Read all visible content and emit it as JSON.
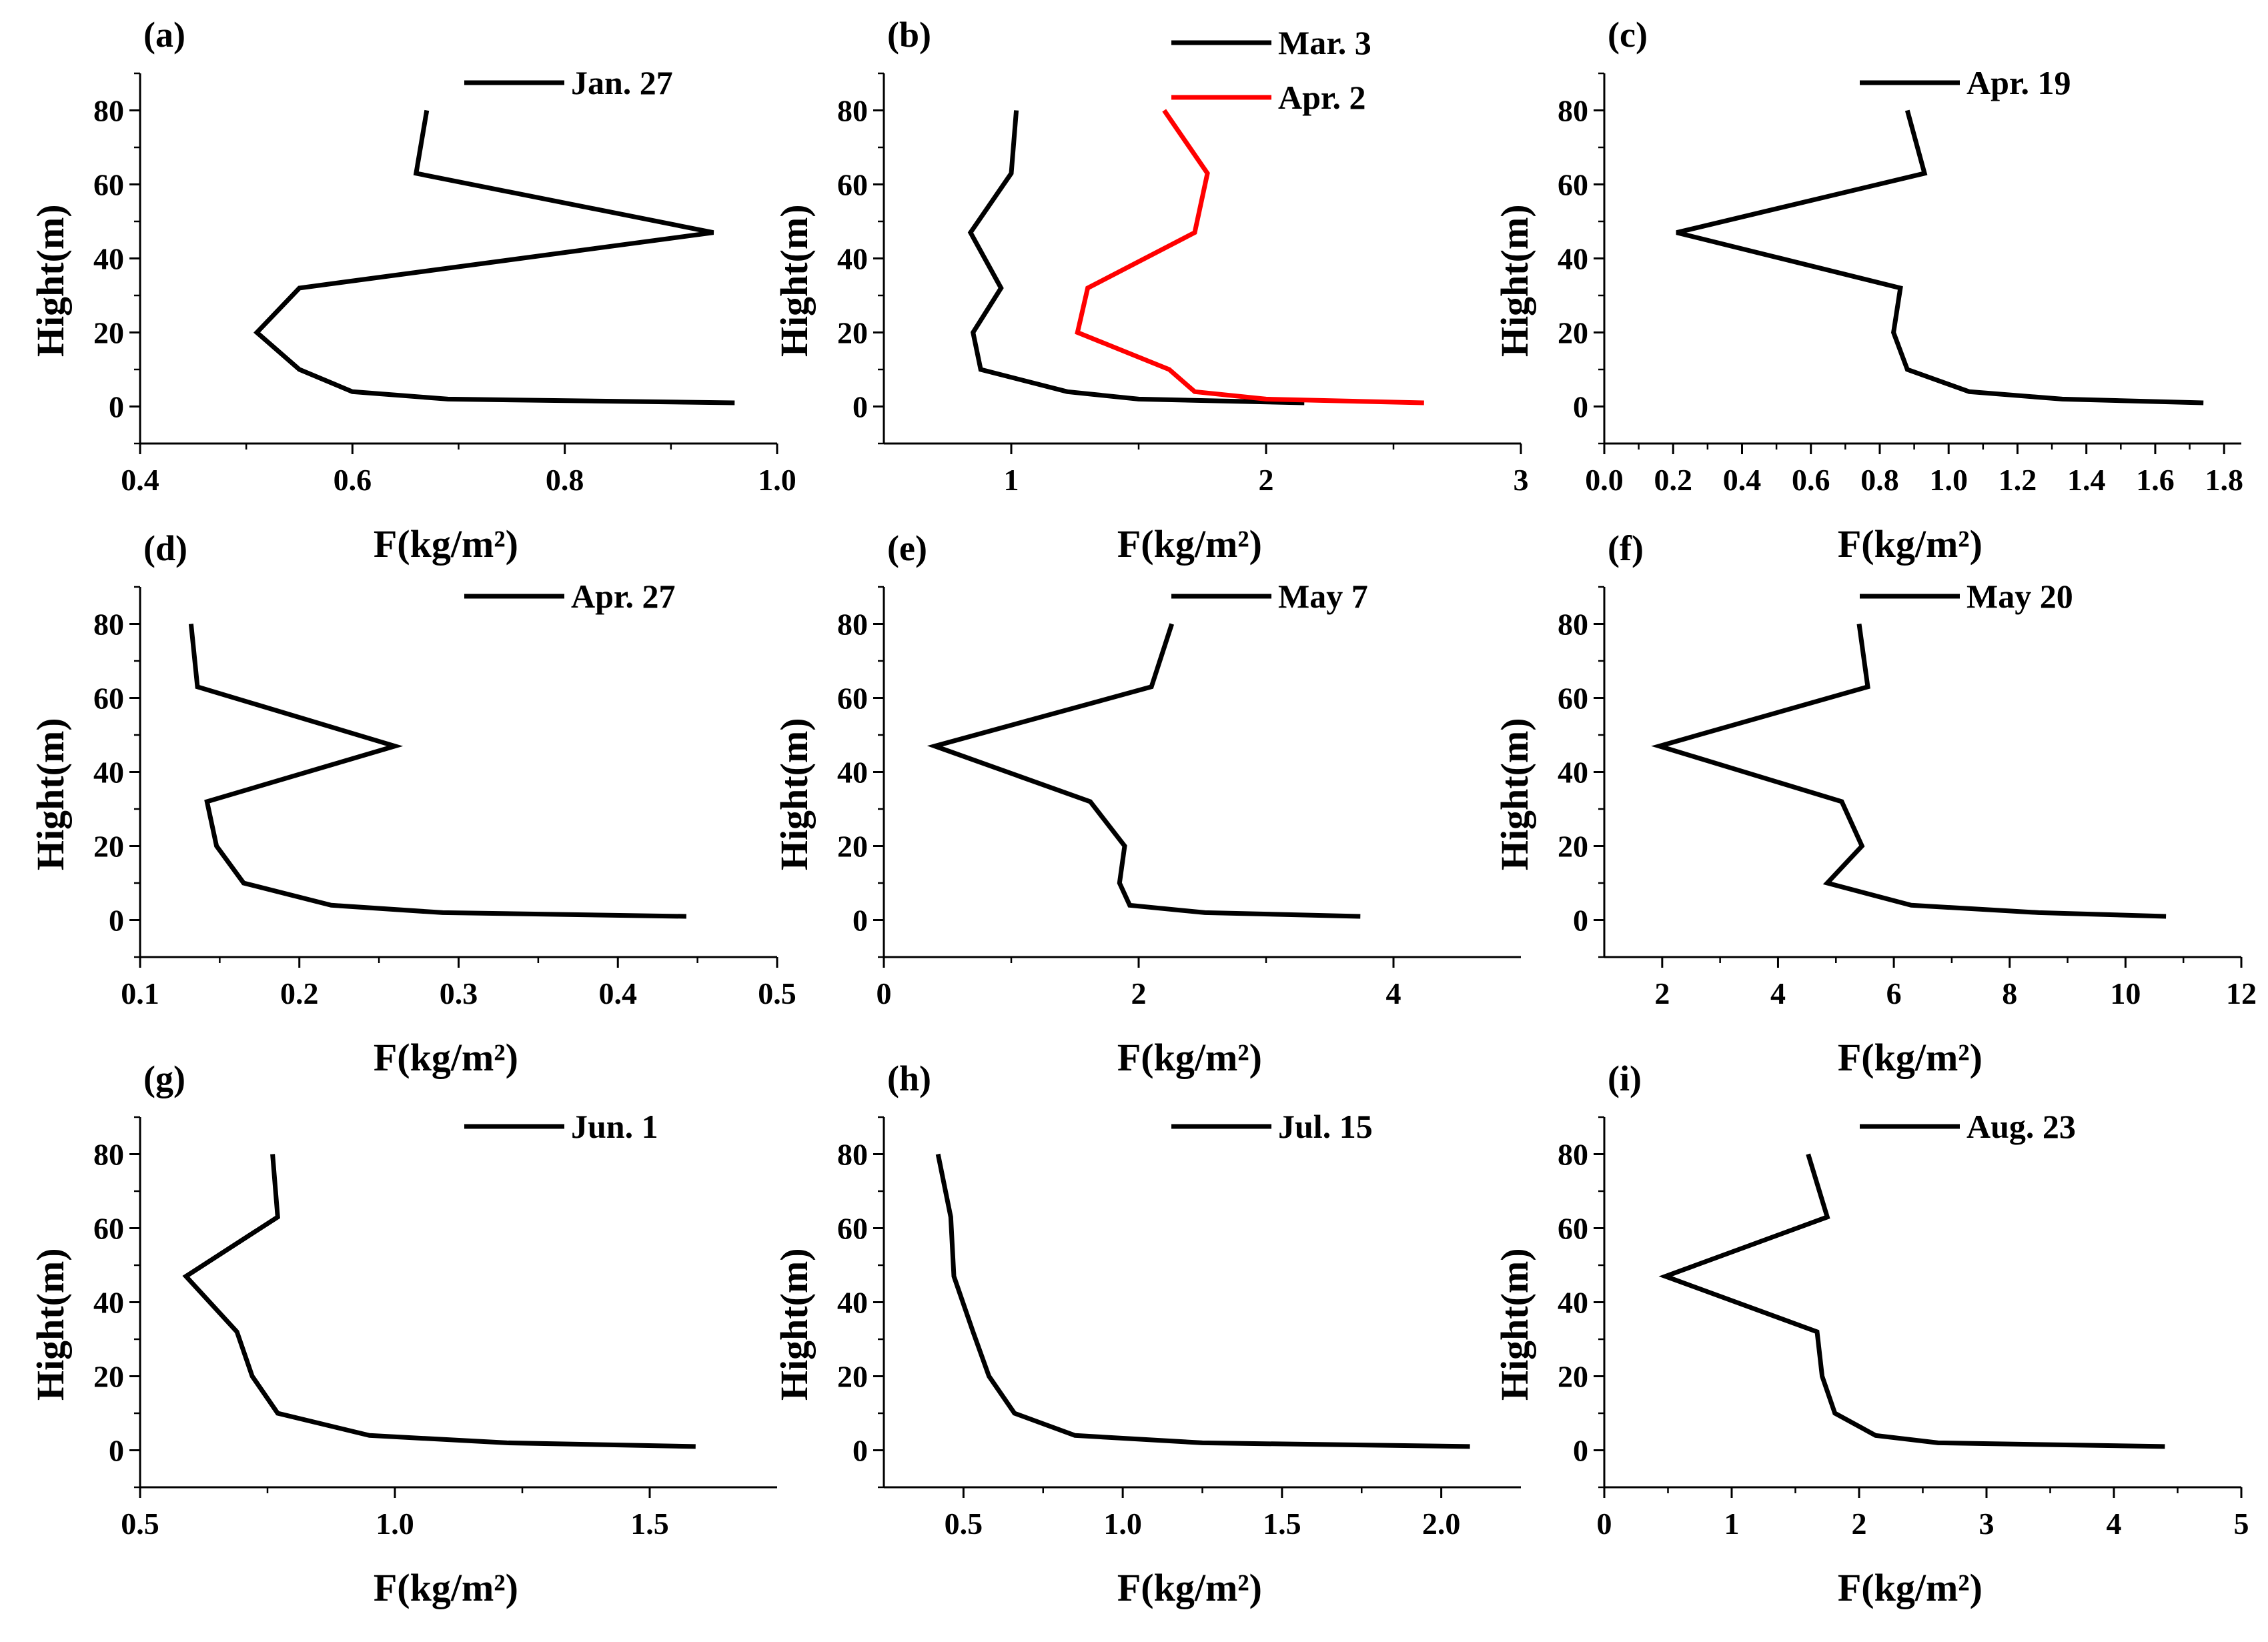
{
  "figure": {
    "ylabel": "Hight(m)",
    "xlabel": "F(kg/m²)"
  },
  "chart_data": [
    {
      "id": "a",
      "label": "(a)",
      "type": "line",
      "xlim": [
        0.4,
        1.0
      ],
      "xticks": [
        0.4,
        0.6,
        0.8,
        1.0
      ],
      "xtick_labels": [
        "0.4",
        "0.6",
        "0.8",
        "1.0"
      ],
      "ylim": [
        -10,
        90
      ],
      "yticks": [
        0,
        20,
        40,
        60,
        80
      ],
      "xlabel": "F(kg/m²)",
      "ylabel": "Hight(m)",
      "legend_position": "top-right",
      "series": [
        {
          "name": "Jan. 27",
          "color": "#000000",
          "points": [
            [
              0.67,
              80
            ],
            [
              0.66,
              63
            ],
            [
              0.94,
              47
            ],
            [
              0.55,
              32
            ],
            [
              0.51,
              20
            ],
            [
              0.55,
              10
            ],
            [
              0.6,
              4
            ],
            [
              0.69,
              2
            ],
            [
              0.96,
              1
            ]
          ]
        }
      ]
    },
    {
      "id": "b",
      "label": "(b)",
      "type": "line",
      "xlim": [
        0.5,
        3.0
      ],
      "xticks": [
        1,
        2,
        3
      ],
      "xtick_labels": [
        "1",
        "2",
        "3"
      ],
      "ylim": [
        -10,
        90
      ],
      "yticks": [
        0,
        20,
        40,
        60,
        80
      ],
      "xlabel": "F(kg/m²)",
      "ylabel": "Hight(m)",
      "legend_position": "top-right",
      "series": [
        {
          "name": "Mar. 3",
          "color": "#000000",
          "points": [
            [
              1.02,
              80
            ],
            [
              1.0,
              63
            ],
            [
              0.84,
              47
            ],
            [
              0.96,
              32
            ],
            [
              0.85,
              20
            ],
            [
              0.88,
              10
            ],
            [
              1.22,
              4
            ],
            [
              1.5,
              2
            ],
            [
              2.15,
              1
            ]
          ]
        },
        {
          "name": "Apr. 2",
          "color": "#ff0000",
          "points": [
            [
              1.6,
              80
            ],
            [
              1.77,
              63
            ],
            [
              1.72,
              47
            ],
            [
              1.3,
              32
            ],
            [
              1.26,
              20
            ],
            [
              1.62,
              10
            ],
            [
              1.72,
              4
            ],
            [
              2.0,
              2
            ],
            [
              2.62,
              1
            ]
          ]
        }
      ]
    },
    {
      "id": "c",
      "label": "(c)",
      "type": "line",
      "xlim": [
        0.0,
        1.85
      ],
      "xticks": [
        0.0,
        0.2,
        0.4,
        0.6,
        0.8,
        1.0,
        1.2,
        1.4,
        1.6,
        1.8
      ],
      "xtick_labels": [
        "0.0",
        "0.2",
        "0.4",
        "0.6",
        "0.8",
        "1.0",
        "1.2",
        "1.4",
        "1.6",
        "1.8"
      ],
      "ylim": [
        -10,
        90
      ],
      "yticks": [
        0,
        20,
        40,
        60,
        80
      ],
      "xlabel": "F(kg/m²)",
      "ylabel": "Hight(m)",
      "legend_position": "top-right",
      "series": [
        {
          "name": "Apr. 19",
          "color": "#000000",
          "points": [
            [
              0.88,
              80
            ],
            [
              0.93,
              63
            ],
            [
              0.21,
              47
            ],
            [
              0.86,
              32
            ],
            [
              0.84,
              20
            ],
            [
              0.88,
              10
            ],
            [
              1.06,
              4
            ],
            [
              1.33,
              2
            ],
            [
              1.74,
              1
            ]
          ]
        }
      ]
    },
    {
      "id": "d",
      "label": "(d)",
      "type": "line",
      "xlim": [
        0.1,
        0.5
      ],
      "xticks": [
        0.1,
        0.2,
        0.3,
        0.4,
        0.5
      ],
      "xtick_labels": [
        "0.1",
        "0.2",
        "0.3",
        "0.4",
        "0.5"
      ],
      "ylim": [
        -10,
        90
      ],
      "yticks": [
        0,
        20,
        40,
        60,
        80
      ],
      "xlabel": "F(kg/m²)",
      "ylabel": "Hight(m)",
      "legend_position": "top-right",
      "series": [
        {
          "name": "Apr. 27",
          "color": "#000000",
          "points": [
            [
              0.132,
              80
            ],
            [
              0.136,
              63
            ],
            [
              0.26,
              47
            ],
            [
              0.142,
              32
            ],
            [
              0.148,
              20
            ],
            [
              0.165,
              10
            ],
            [
              0.22,
              4
            ],
            [
              0.29,
              2
            ],
            [
              0.443,
              1
            ]
          ]
        }
      ]
    },
    {
      "id": "e",
      "label": "(e)",
      "type": "line",
      "xlim": [
        0,
        5
      ],
      "xticks": [
        0,
        2,
        4
      ],
      "xtick_labels": [
        "0",
        "2",
        "4"
      ],
      "ylim": [
        -10,
        90
      ],
      "yticks": [
        0,
        20,
        40,
        60,
        80
      ],
      "xlabel": "F(kg/m²)",
      "ylabel": "Hight(m)",
      "legend_position": "top-right",
      "series": [
        {
          "name": "May 7",
          "color": "#000000",
          "points": [
            [
              2.26,
              80
            ],
            [
              2.1,
              63
            ],
            [
              0.4,
              47
            ],
            [
              1.62,
              32
            ],
            [
              1.89,
              20
            ],
            [
              1.85,
              10
            ],
            [
              1.93,
              4
            ],
            [
              2.52,
              2
            ],
            [
              3.74,
              1
            ]
          ]
        }
      ]
    },
    {
      "id": "f",
      "label": "(f)",
      "type": "line",
      "xlim": [
        1,
        12
      ],
      "xticks": [
        2,
        4,
        6,
        8,
        10,
        12
      ],
      "xtick_labels": [
        "2",
        "4",
        "6",
        "8",
        "10",
        "12"
      ],
      "ylim": [
        -10,
        90
      ],
      "yticks": [
        0,
        20,
        40,
        60,
        80
      ],
      "xlabel": "F(kg/m²)",
      "ylabel": "Hight(m)",
      "legend_position": "top-right",
      "series": [
        {
          "name": "May 20",
          "color": "#000000",
          "points": [
            [
              5.4,
              80
            ],
            [
              5.55,
              63
            ],
            [
              1.95,
              47
            ],
            [
              5.1,
              32
            ],
            [
              5.45,
              20
            ],
            [
              4.85,
              10
            ],
            [
              6.3,
              4
            ],
            [
              8.5,
              2
            ],
            [
              10.7,
              1
            ]
          ]
        }
      ]
    },
    {
      "id": "g",
      "label": "(g)",
      "type": "line",
      "xlim": [
        0.5,
        1.75
      ],
      "xticks": [
        0.5,
        1.0,
        1.5
      ],
      "xtick_labels": [
        "0.5",
        "1.0",
        "1.5"
      ],
      "ylim": [
        -10,
        90
      ],
      "yticks": [
        0,
        20,
        40,
        60,
        80
      ],
      "xlabel": "F(kg/m²)",
      "ylabel": "Hight(m)",
      "legend_position": "top-right",
      "series": [
        {
          "name": "Jun. 1",
          "color": "#000000",
          "points": [
            [
              0.76,
              80
            ],
            [
              0.77,
              63
            ],
            [
              0.59,
              47
            ],
            [
              0.69,
              32
            ],
            [
              0.72,
              20
            ],
            [
              0.77,
              10
            ],
            [
              0.95,
              4
            ],
            [
              1.22,
              2
            ],
            [
              1.59,
              1
            ]
          ]
        }
      ]
    },
    {
      "id": "h",
      "label": "(h)",
      "type": "line",
      "xlim": [
        0.25,
        2.25
      ],
      "xticks": [
        0.5,
        1.0,
        1.5,
        2.0
      ],
      "xtick_labels": [
        "0.5",
        "1.0",
        "1.5",
        "2.0"
      ],
      "ylim": [
        -10,
        90
      ],
      "yticks": [
        0,
        20,
        40,
        60,
        80
      ],
      "xlabel": "F(kg/m²)",
      "ylabel": "Hight(m)",
      "legend_position": "top-right",
      "series": [
        {
          "name": "Jul. 15",
          "color": "#000000",
          "points": [
            [
              0.42,
              80
            ],
            [
              0.46,
              63
            ],
            [
              0.47,
              47
            ],
            [
              0.53,
              32
            ],
            [
              0.58,
              20
            ],
            [
              0.66,
              10
            ],
            [
              0.85,
              4
            ],
            [
              1.25,
              2
            ],
            [
              2.09,
              1
            ]
          ]
        }
      ]
    },
    {
      "id": "i",
      "label": "(i)",
      "type": "line",
      "xlim": [
        0,
        5
      ],
      "xticks": [
        0,
        1,
        2,
        3,
        4,
        5
      ],
      "xtick_labels": [
        "0",
        "1",
        "2",
        "3",
        "4",
        "5"
      ],
      "ylim": [
        -10,
        90
      ],
      "yticks": [
        0,
        20,
        40,
        60,
        80
      ],
      "xlabel": "F(kg/m²)",
      "ylabel": "Hight(m)",
      "legend_position": "top-right",
      "series": [
        {
          "name": "Aug. 23",
          "color": "#000000",
          "points": [
            [
              1.6,
              80
            ],
            [
              1.75,
              63
            ],
            [
              0.48,
              47
            ],
            [
              1.67,
              32
            ],
            [
              1.71,
              20
            ],
            [
              1.81,
              10
            ],
            [
              2.13,
              4
            ],
            [
              2.62,
              2
            ],
            [
              4.4,
              1
            ]
          ]
        }
      ]
    }
  ]
}
